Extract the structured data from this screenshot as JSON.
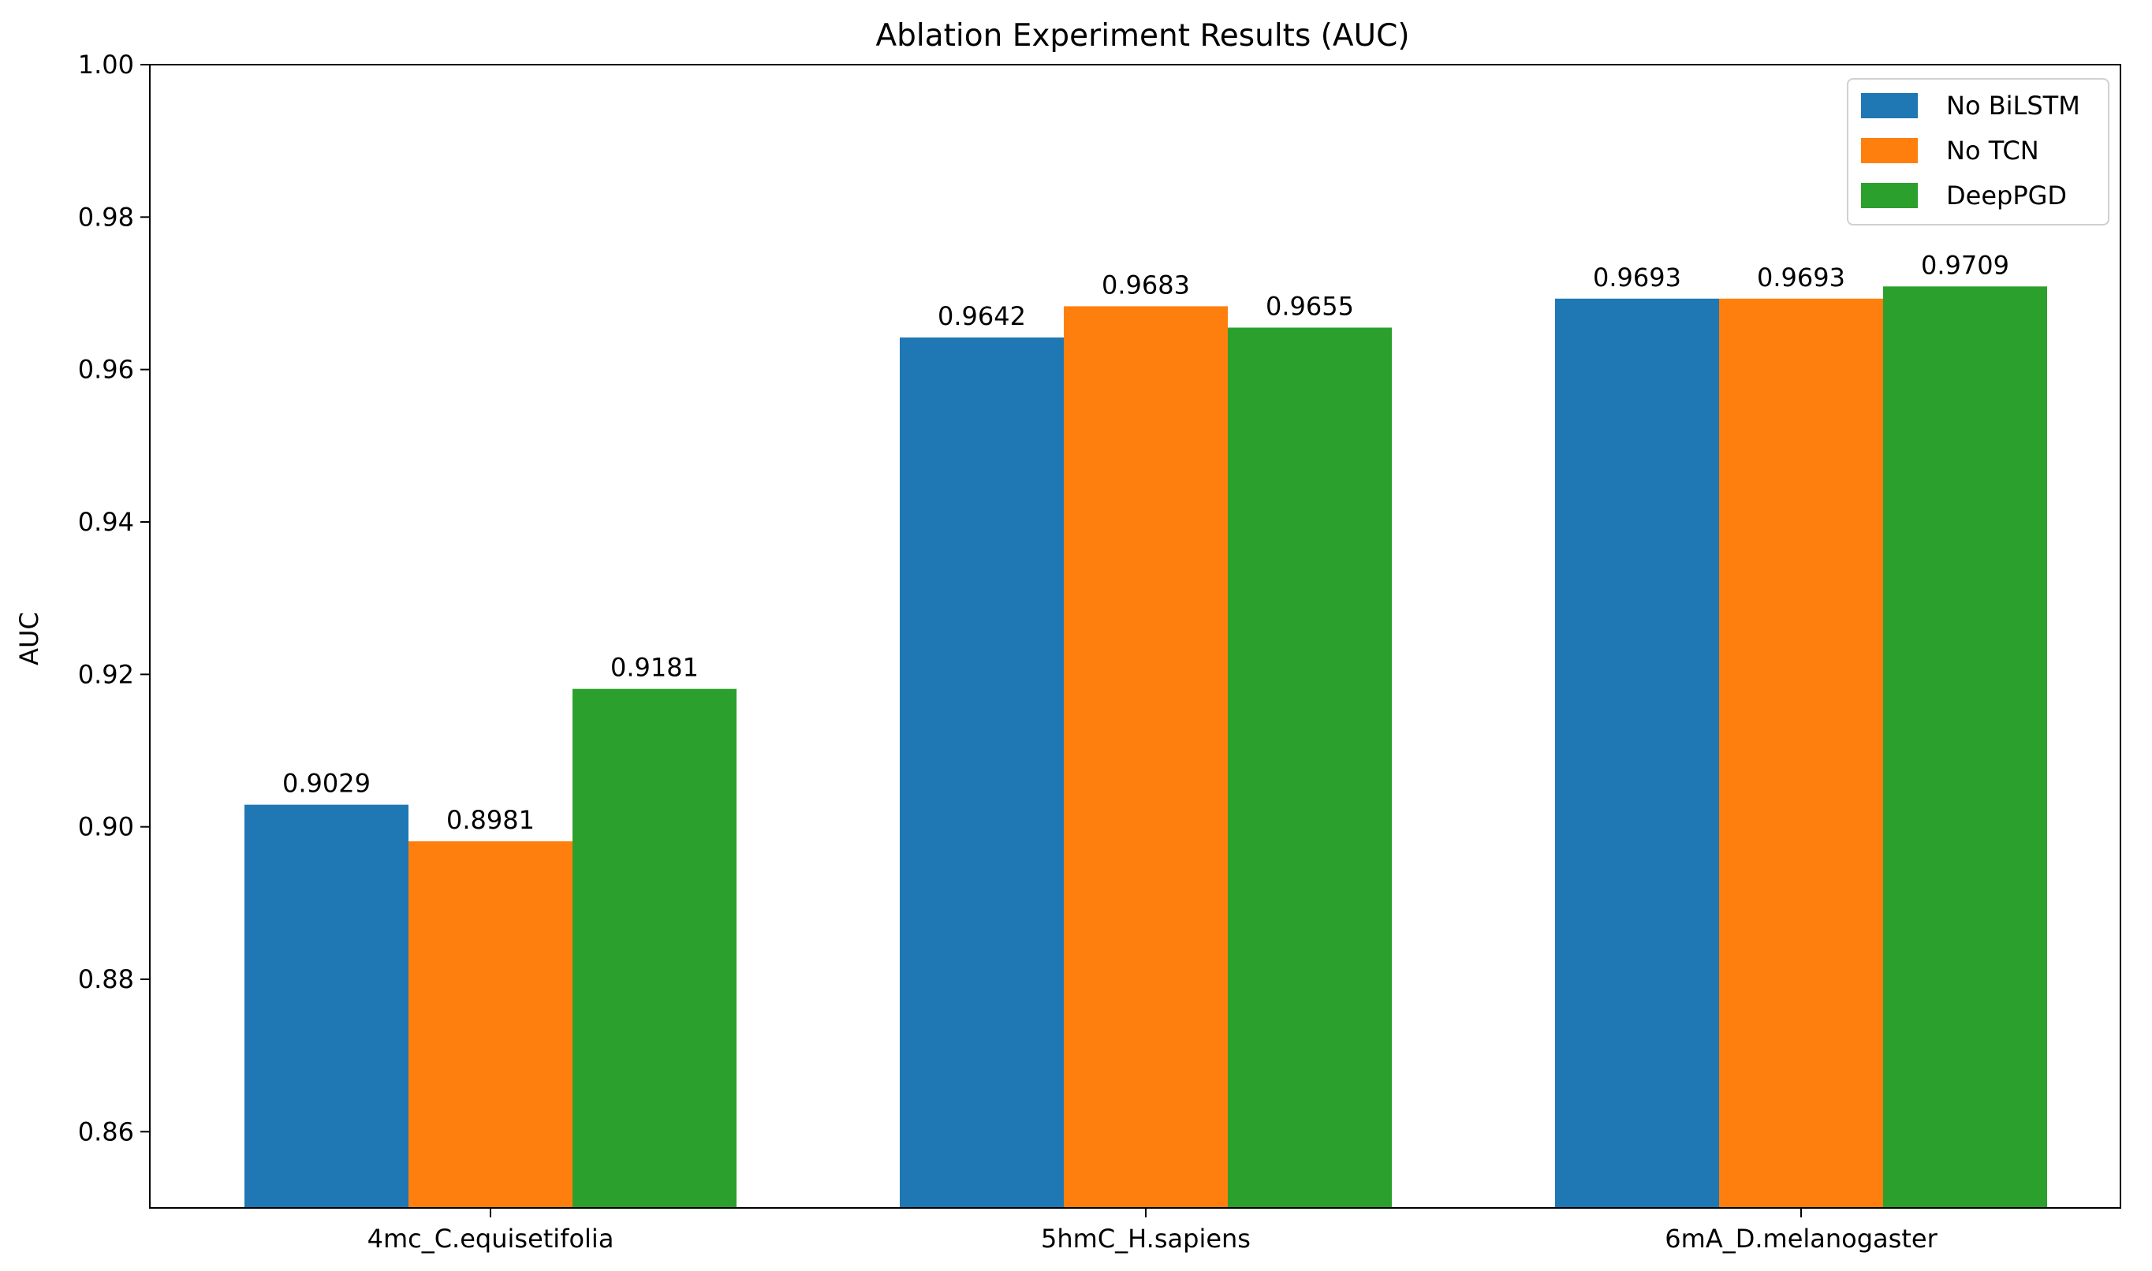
{
  "chart_data": {
    "type": "bar",
    "title": "Ablation Experiment Results (AUC)",
    "xlabel": "",
    "ylabel": "AUC",
    "ylim": [
      0.85,
      1.0
    ],
    "yticks": [
      "0.86",
      "0.88",
      "0.90",
      "0.92",
      "0.94",
      "0.96",
      "0.98",
      "1.00"
    ],
    "categories": [
      "4mc_C.equisetifolia",
      "5hmC_H.sapiens",
      "6mA_D.melanogaster"
    ],
    "series": [
      {
        "name": "No BiLSTM",
        "color": "#1f77b4",
        "values": [
          0.9029,
          0.9642,
          0.9693
        ],
        "labels": [
          "0.9029",
          "0.9642",
          "0.9693"
        ]
      },
      {
        "name": "No TCN",
        "color": "#ff7f0e",
        "values": [
          0.8981,
          0.9683,
          0.9693
        ],
        "labels": [
          "0.8981",
          "0.9683",
          "0.9693"
        ]
      },
      {
        "name": "DeepPGD",
        "color": "#2ca02c",
        "values": [
          0.9181,
          0.9655,
          0.9709
        ],
        "labels": [
          "0.9181",
          "0.9655",
          "0.9709"
        ]
      }
    ],
    "legend_position": "top-right",
    "grid": false
  }
}
